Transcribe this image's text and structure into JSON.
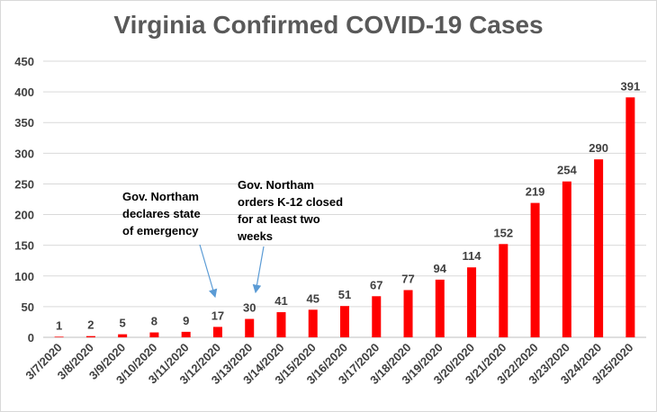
{
  "chart_data": {
    "type": "bar",
    "title": "Virginia Confirmed COVID-19 Cases",
    "xlabel": "",
    "ylabel": "",
    "categories": [
      "3/7/2020",
      "3/8/2020",
      "3/9/2020",
      "3/10/2020",
      "3/11/2020",
      "3/12/2020",
      "3/13/2020",
      "3/14/2020",
      "3/15/2020",
      "3/16/2020",
      "3/17/2020",
      "3/18/2020",
      "3/19/2020",
      "3/20/2020",
      "3/21/2020",
      "3/22/2020",
      "3/23/2020",
      "3/24/2020",
      "3/25/2020"
    ],
    "values": [
      1,
      2,
      5,
      8,
      9,
      17,
      30,
      41,
      45,
      51,
      67,
      77,
      94,
      114,
      152,
      219,
      254,
      290,
      391
    ],
    "ylim": [
      0,
      450
    ],
    "yticks": [
      0,
      50,
      100,
      150,
      200,
      250,
      300,
      350,
      400,
      450
    ],
    "grid": true,
    "legend": "none",
    "bar_color": "#ff0000",
    "annotations": [
      {
        "text": "Gov. Northam\ndeclares state\nof emergency",
        "points_to": "3/12/2020"
      },
      {
        "text": "Gov. Northam\norders K-12 closed\nfor at least two\nweeks",
        "points_to": "3/13/2020"
      }
    ]
  }
}
